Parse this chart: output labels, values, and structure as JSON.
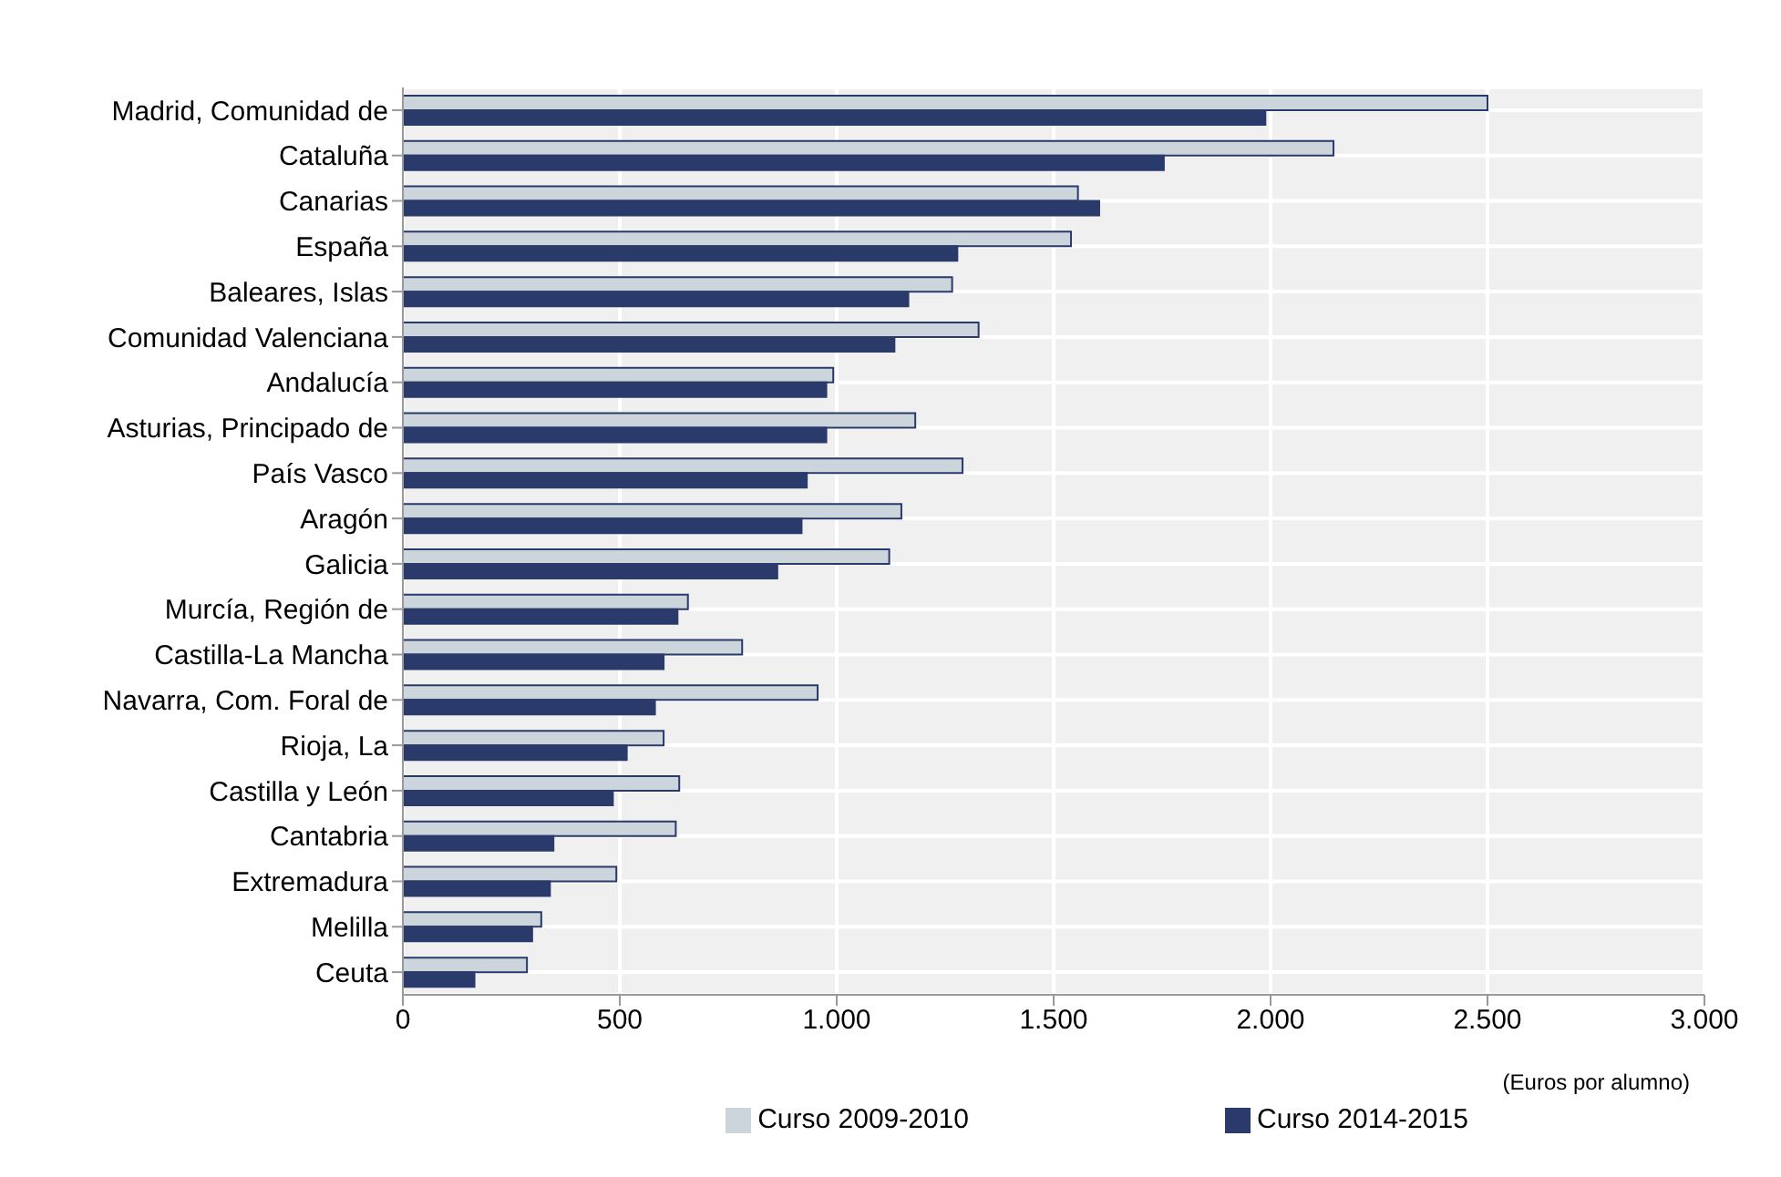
{
  "chart_data": {
    "type": "bar",
    "orientation": "horizontal",
    "xlabel": "(Euros por alumno)",
    "categories": [
      "Madrid, Comunidad de",
      "Cataluña",
      "Canarias",
      "España",
      "Baleares, Islas",
      "Comunidad Valenciana",
      "Andalucía",
      "Asturias, Principado de",
      "País Vasco",
      "Aragón",
      "Galicia",
      "Murcía, Región de",
      "Castilla-La Mancha",
      "Navarra, Com. Foral de",
      "Rioja, La",
      "Castilla y León",
      "Cantabria",
      "Extremadura",
      "Melilla",
      "Ceuta"
    ],
    "series": [
      {
        "name": "Curso 2009-2010",
        "color": "#cdd5dc",
        "values": [
          2500,
          2145,
          1556,
          1540,
          1266,
          1327,
          992,
          1181,
          1290,
          1149,
          1121,
          657,
          782,
          956,
          601,
          637,
          629,
          492,
          319,
          286
        ]
      },
      {
        "name": "Curso 2014-2015",
        "color": "#293a6b",
        "values": [
          1988,
          1754,
          1605,
          1278,
          1165,
          1133,
          976,
          976,
          931,
          919,
          863,
          633,
          601,
          581,
          516,
          484,
          347,
          339,
          298,
          165
        ]
      }
    ],
    "xlim": [
      0,
      3000
    ],
    "xticks": [
      0,
      500,
      {
        "value": 1000,
        "label": "1.000"
      },
      {
        "value": 1500,
        "label": "1.500"
      },
      {
        "value": 2000,
        "label": "2.000"
      },
      {
        "value": 2500,
        "label": "2.500"
      },
      {
        "value": 3000,
        "label": "3.000"
      }
    ],
    "grid": true,
    "legend": "bottom"
  }
}
